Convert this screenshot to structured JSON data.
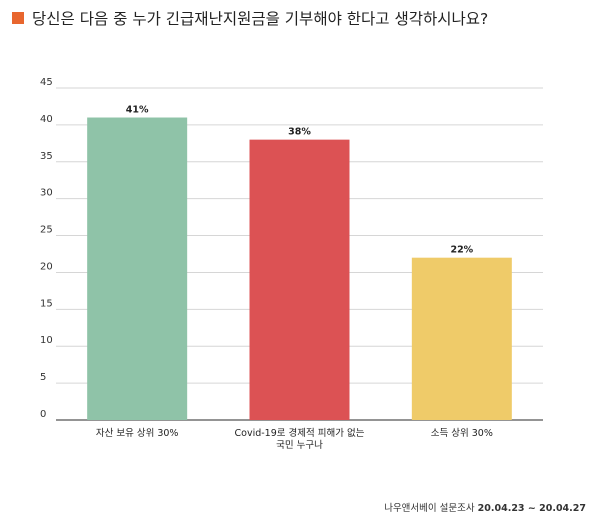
{
  "chart_data": {
    "type": "bar",
    "title": "당신은 다음 중 누가 긴급재난지원금을 기부해야 한다고 생각하시나요?",
    "categories": [
      [
        "자산 보유 상위 30%"
      ],
      [
        "Covid-19로 경제적 피해가 없는",
        "국민 누구나"
      ],
      [
        "소득 상위 30%"
      ]
    ],
    "values": [
      41,
      38,
      22
    ],
    "value_labels": [
      "41%",
      "38%",
      "22%"
    ],
    "colors": [
      "#8fc3a8",
      "#dc5254",
      "#efcb69"
    ],
    "ylim": [
      0,
      45
    ],
    "yticks": [
      0,
      5,
      10,
      15,
      20,
      25,
      30,
      35,
      40,
      45
    ],
    "grid": true,
    "legend": "none"
  },
  "title_marker_color": "#e8662e",
  "source": {
    "org": "나우앤서베이 설문조사",
    "dates": "20.04.23 ~ 20.04.27"
  }
}
